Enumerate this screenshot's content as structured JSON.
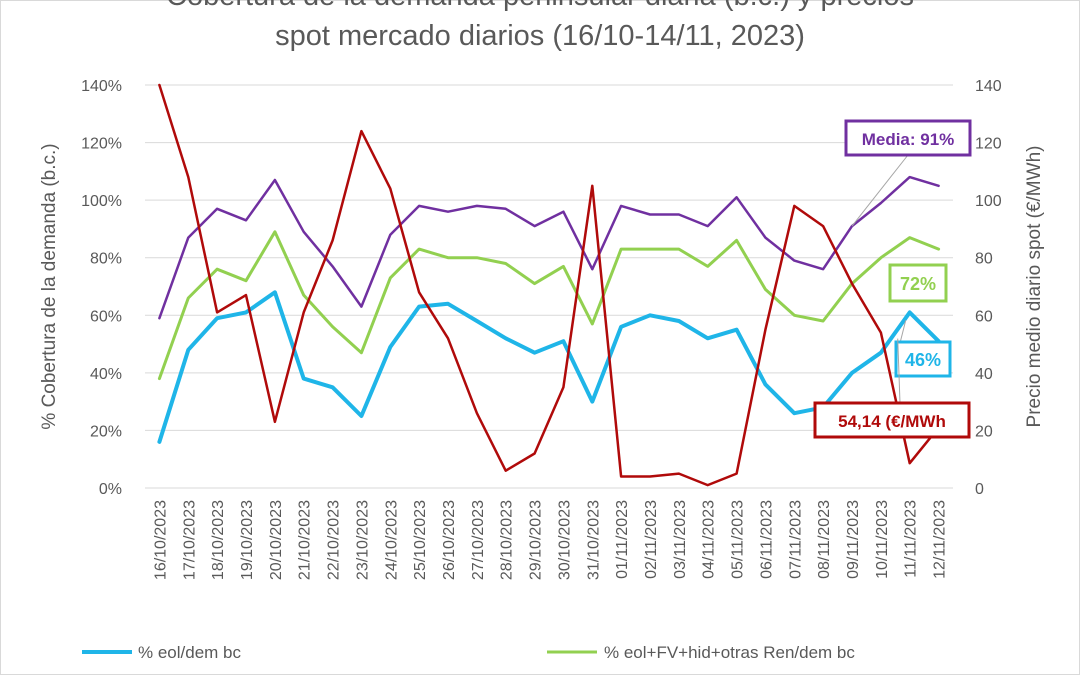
{
  "chart_data": {
    "type": "line",
    "title_line1": "Cobertura de la demanda peninsular diaria (b.c.) y precios",
    "title_line2": "spot mercado diarios (16/10-14/11, 2023)",
    "ylabel": "% Cobertura de la demanda (b.c.)",
    "y2label": "Precio medio diario spot (€/MWh)",
    "ylim": [
      0,
      140
    ],
    "y2lim": [
      0,
      140
    ],
    "yticks": [
      "0%",
      "20%",
      "40%",
      "60%",
      "80%",
      "100%",
      "120%",
      "140%"
    ],
    "y2ticks": [
      "0",
      "20",
      "40",
      "60",
      "80",
      "100",
      "120",
      "140"
    ],
    "grid": true,
    "legend_position": "bottom",
    "categories": [
      "16/10/2023",
      "17/10/2023",
      "18/10/2023",
      "19/10/2023",
      "20/10/2023",
      "21/10/2023",
      "22/10/2023",
      "23/10/2023",
      "24/10/2023",
      "25/10/2023",
      "26/10/2023",
      "27/10/2023",
      "28/10/2023",
      "29/10/2023",
      "30/10/2023",
      "31/10/2023",
      "01/11/2023",
      "02/11/2023",
      "03/11/2023",
      "04/11/2023",
      "05/11/2023",
      "06/11/2023",
      "07/11/2023",
      "08/11/2023",
      "09/11/2023",
      "10/11/2023",
      "11/11/2023",
      "12/11/2023"
    ],
    "series": [
      {
        "name": "% eol/dem bc",
        "color": "#1fb5e8",
        "width": 4,
        "axis": "left",
        "values": [
          16,
          48,
          59,
          61,
          68,
          38,
          35,
          25,
          49,
          63,
          64,
          58,
          52,
          47,
          51,
          30,
          56,
          60,
          58,
          52,
          55,
          36,
          26,
          28,
          40,
          47,
          61,
          51
        ]
      },
      {
        "name": "% eol+FV+hid+otras Ren/dem bc",
        "color": "#92d050",
        "width": 3,
        "axis": "left",
        "values": [
          38,
          66,
          76,
          72,
          89,
          67,
          56,
          47,
          73,
          83,
          80,
          80,
          78,
          71,
          77,
          57,
          83,
          83,
          83,
          77,
          86,
          69,
          60,
          58,
          71,
          80,
          87,
          83
        ]
      },
      {
        "color": "#7030a0",
        "width": 2.5,
        "axis": "left",
        "values": [
          59,
          87,
          97,
          93,
          107,
          89,
          77,
          63,
          88,
          98,
          96,
          98,
          97,
          91,
          96,
          76,
          98,
          95,
          95,
          91,
          101,
          87,
          79,
          76,
          91,
          99,
          108,
          105
        ]
      },
      {
        "color": "#b00a0a",
        "width": 2.5,
        "axis": "right",
        "values": [
          140,
          108,
          61,
          67,
          23,
          61,
          86,
          124,
          104,
          68,
          52,
          26,
          6,
          12,
          35,
          105,
          4,
          4,
          5,
          1,
          5,
          55,
          98,
          91,
          71,
          54,
          8.6,
          21
        ]
      }
    ],
    "annotations": [
      {
        "text": "Media: 91%",
        "color": "#7030a0"
      },
      {
        "text": "72%",
        "color": "#92d050"
      },
      {
        "text": "46%",
        "color": "#1fb5e8"
      },
      {
        "text": "54,14 (€/MWh",
        "color": "#b00a0a"
      }
    ]
  }
}
